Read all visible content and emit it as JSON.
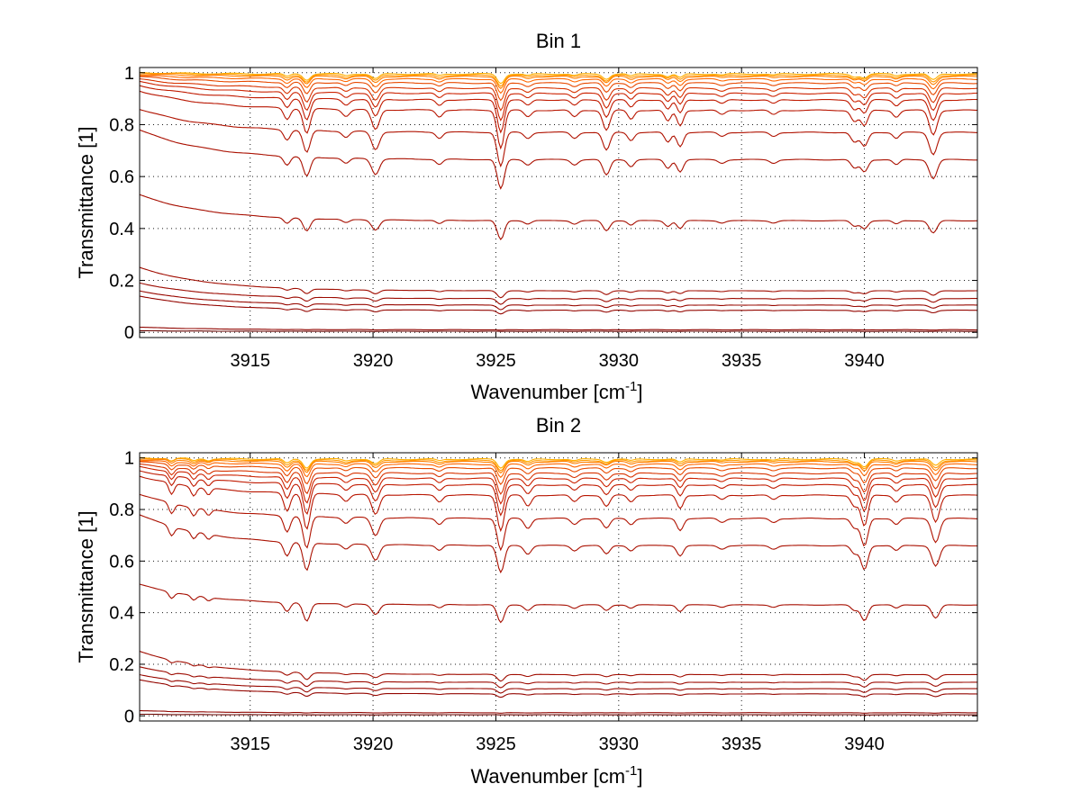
{
  "chart_data": [
    {
      "type": "line",
      "title": "Bin 1",
      "xlabel": "Wavenumber [cm",
      "xlabel_sup": "-1",
      "xlabel_end": "]",
      "ylabel": "Transmittance [1]",
      "xlim": [
        3910.5,
        3944.6
      ],
      "ylim": [
        -0.02,
        1.02
      ],
      "xticks": [
        3915,
        3920,
        3925,
        3930,
        3935,
        3940
      ],
      "yticks": [
        0,
        0.2,
        0.4,
        0.6,
        0.8,
        1
      ],
      "ytick_labels": [
        "0",
        "0.2",
        "0.4",
        "0.6",
        "0.8",
        "1"
      ],
      "grid": true,
      "absorption_lines": [
        {
          "x": 3916.5,
          "rel_depth": 0.05,
          "width": 0.18
        },
        {
          "x": 3917.3,
          "rel_depth": 0.11,
          "width": 0.2
        },
        {
          "x": 3918.9,
          "rel_depth": 0.03,
          "width": 0.2
        },
        {
          "x": 3920.1,
          "rel_depth": 0.09,
          "width": 0.22
        },
        {
          "x": 3922.7,
          "rel_depth": 0.03,
          "width": 0.18
        },
        {
          "x": 3925.2,
          "rel_depth": 0.17,
          "width": 0.2
        },
        {
          "x": 3926.3,
          "rel_depth": 0.03,
          "width": 0.2
        },
        {
          "x": 3928.2,
          "rel_depth": 0.03,
          "width": 0.2
        },
        {
          "x": 3929.5,
          "rel_depth": 0.09,
          "width": 0.2
        },
        {
          "x": 3930.5,
          "rel_depth": 0.04,
          "width": 0.18
        },
        {
          "x": 3932.0,
          "rel_depth": 0.05,
          "width": 0.18
        },
        {
          "x": 3932.5,
          "rel_depth": 0.07,
          "width": 0.18
        },
        {
          "x": 3934.2,
          "rel_depth": 0.02,
          "width": 0.2
        },
        {
          "x": 3936.3,
          "rel_depth": 0.02,
          "width": 0.2
        },
        {
          "x": 3939.6,
          "rel_depth": 0.05,
          "width": 0.2
        },
        {
          "x": 3940.0,
          "rel_depth": 0.07,
          "width": 0.2
        },
        {
          "x": 3941.3,
          "rel_depth": 0.03,
          "width": 0.18
        },
        {
          "x": 3942.8,
          "rel_depth": 0.11,
          "width": 0.22
        }
      ],
      "series": [
        {
          "base": 0.995,
          "start": 1.0,
          "color": "#ffb000"
        },
        {
          "base": 0.99,
          "start": 1.0,
          "color": "#ff9900"
        },
        {
          "base": 0.985,
          "start": 0.995,
          "color": "#ff7f00"
        },
        {
          "base": 0.975,
          "start": 0.99,
          "color": "#ff6600"
        },
        {
          "base": 0.96,
          "start": 0.985,
          "color": "#e84a00"
        },
        {
          "base": 0.94,
          "start": 0.975,
          "color": "#d83300"
        },
        {
          "base": 0.92,
          "start": 0.965,
          "color": "#cc2200"
        },
        {
          "base": 0.895,
          "start": 0.95,
          "color": "#c01a00"
        },
        {
          "base": 0.855,
          "start": 0.93,
          "color": "#b81500"
        },
        {
          "base": 0.77,
          "start": 0.86,
          "color": "#b01200"
        },
        {
          "base": 0.665,
          "start": 0.78,
          "color": "#aa1000"
        },
        {
          "base": 0.43,
          "start": 0.53,
          "color": "#a60e00"
        },
        {
          "base": 0.16,
          "start": 0.25,
          "color": "#a00c00"
        },
        {
          "base": 0.13,
          "start": 0.19,
          "color": "#9c0a00"
        },
        {
          "base": 0.105,
          "start": 0.16,
          "color": "#980800"
        },
        {
          "base": 0.085,
          "start": 0.14,
          "color": "#940600"
        },
        {
          "base": 0.01,
          "start": 0.02,
          "color": "#900500"
        },
        {
          "base": 0.004,
          "start": 0.006,
          "color": "#6a0400"
        }
      ]
    },
    {
      "type": "line",
      "title": "Bin 2",
      "xlabel": "Wavenumber [cm",
      "xlabel_sup": "-1",
      "xlabel_end": "]",
      "ylabel": "Transmittance [1]",
      "xlim": [
        3910.5,
        3944.6
      ],
      "ylim": [
        -0.02,
        1.02
      ],
      "xticks": [
        3915,
        3920,
        3925,
        3930,
        3935,
        3940
      ],
      "yticks": [
        0,
        0.2,
        0.4,
        0.6,
        0.8,
        1
      ],
      "ytick_labels": [
        "0",
        "0.2",
        "0.4",
        "0.6",
        "0.8",
        "1"
      ],
      "grid": true,
      "absorption_lines": [
        {
          "x": 3911.8,
          "rel_depth": 0.05,
          "width": 0.15
        },
        {
          "x": 3912.7,
          "rel_depth": 0.04,
          "width": 0.15
        },
        {
          "x": 3913.3,
          "rel_depth": 0.03,
          "width": 0.15
        },
        {
          "x": 3916.5,
          "rel_depth": 0.08,
          "width": 0.18
        },
        {
          "x": 3917.3,
          "rel_depth": 0.16,
          "width": 0.2
        },
        {
          "x": 3918.9,
          "rel_depth": 0.03,
          "width": 0.2
        },
        {
          "x": 3920.1,
          "rel_depth": 0.09,
          "width": 0.22
        },
        {
          "x": 3922.7,
          "rel_depth": 0.03,
          "width": 0.18
        },
        {
          "x": 3925.2,
          "rel_depth": 0.16,
          "width": 0.2
        },
        {
          "x": 3926.3,
          "rel_depth": 0.05,
          "width": 0.2
        },
        {
          "x": 3928.2,
          "rel_depth": 0.03,
          "width": 0.2
        },
        {
          "x": 3929.5,
          "rel_depth": 0.05,
          "width": 0.2
        },
        {
          "x": 3930.5,
          "rel_depth": 0.03,
          "width": 0.18
        },
        {
          "x": 3932.5,
          "rel_depth": 0.06,
          "width": 0.18
        },
        {
          "x": 3934.2,
          "rel_depth": 0.02,
          "width": 0.2
        },
        {
          "x": 3936.3,
          "rel_depth": 0.02,
          "width": 0.2
        },
        {
          "x": 3939.6,
          "rel_depth": 0.05,
          "width": 0.2
        },
        {
          "x": 3940.0,
          "rel_depth": 0.14,
          "width": 0.2
        },
        {
          "x": 3941.3,
          "rel_depth": 0.03,
          "width": 0.18
        },
        {
          "x": 3942.9,
          "rel_depth": 0.12,
          "width": 0.22
        }
      ],
      "series": [
        {
          "base": 0.995,
          "start": 1.0,
          "color": "#ffb000"
        },
        {
          "base": 0.99,
          "start": 1.0,
          "color": "#ff9900"
        },
        {
          "base": 0.985,
          "start": 0.995,
          "color": "#ff7f00"
        },
        {
          "base": 0.975,
          "start": 0.99,
          "color": "#ff6600"
        },
        {
          "base": 0.96,
          "start": 0.985,
          "color": "#e84a00"
        },
        {
          "base": 0.94,
          "start": 0.975,
          "color": "#d83300"
        },
        {
          "base": 0.92,
          "start": 0.965,
          "color": "#cc2200"
        },
        {
          "base": 0.895,
          "start": 0.95,
          "color": "#c01a00"
        },
        {
          "base": 0.855,
          "start": 0.93,
          "color": "#b81500"
        },
        {
          "base": 0.765,
          "start": 0.86,
          "color": "#b01200"
        },
        {
          "base": 0.66,
          "start": 0.78,
          "color": "#aa1000"
        },
        {
          "base": 0.43,
          "start": 0.51,
          "color": "#a60e00"
        },
        {
          "base": 0.16,
          "start": 0.25,
          "color": "#a00c00"
        },
        {
          "base": 0.13,
          "start": 0.19,
          "color": "#9c0a00"
        },
        {
          "base": 0.105,
          "start": 0.16,
          "color": "#980800"
        },
        {
          "base": 0.085,
          "start": 0.14,
          "color": "#940600"
        },
        {
          "base": 0.012,
          "start": 0.02,
          "color": "#900500"
        },
        {
          "base": 0.004,
          "start": 0.006,
          "color": "#6a0400"
        }
      ]
    }
  ]
}
